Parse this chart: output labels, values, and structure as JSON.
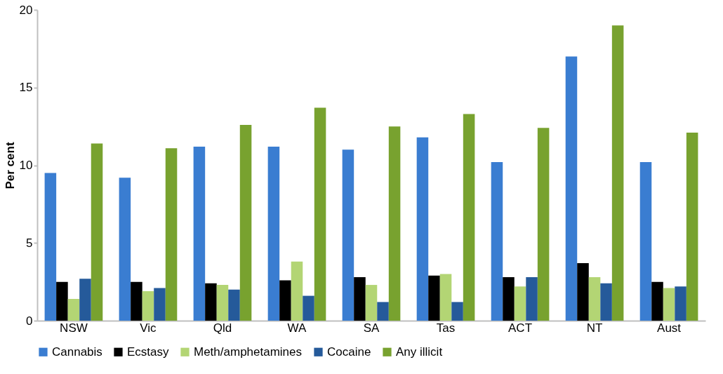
{
  "chart_data": {
    "type": "bar",
    "ylabel": "Per cent",
    "categories": [
      "NSW",
      "Vic",
      "Qld",
      "WA",
      "SA",
      "Tas",
      "ACT",
      "NT",
      "Aust"
    ],
    "series": [
      {
        "name": "Cannabis",
        "color": "#3a7dd1",
        "values": [
          9.5,
          9.2,
          11.2,
          11.2,
          11.0,
          11.8,
          10.2,
          17.0,
          10.2
        ]
      },
      {
        "name": "Ecstasy",
        "color": "#000000",
        "values": [
          2.5,
          2.5,
          2.4,
          2.6,
          2.8,
          2.9,
          2.8,
          3.7,
          2.5
        ]
      },
      {
        "name": "Meth/amphetamines",
        "color": "#b3d574",
        "values": [
          1.4,
          1.9,
          2.3,
          3.8,
          2.3,
          3.0,
          2.2,
          2.8,
          2.1
        ]
      },
      {
        "name": "Cocaine",
        "color": "#255a9a",
        "values": [
          2.7,
          2.1,
          2.0,
          1.6,
          1.2,
          1.2,
          2.8,
          2.4,
          2.2
        ]
      },
      {
        "name": "Any illicit",
        "color": "#78a22f",
        "values": [
          11.4,
          11.1,
          12.6,
          13.7,
          12.5,
          13.3,
          12.4,
          19.0,
          12.1
        ]
      }
    ],
    "ylim": [
      0,
      20
    ],
    "yticks": [
      0,
      5,
      10,
      15,
      20
    ],
    "grid": false,
    "legend": "bottom"
  }
}
